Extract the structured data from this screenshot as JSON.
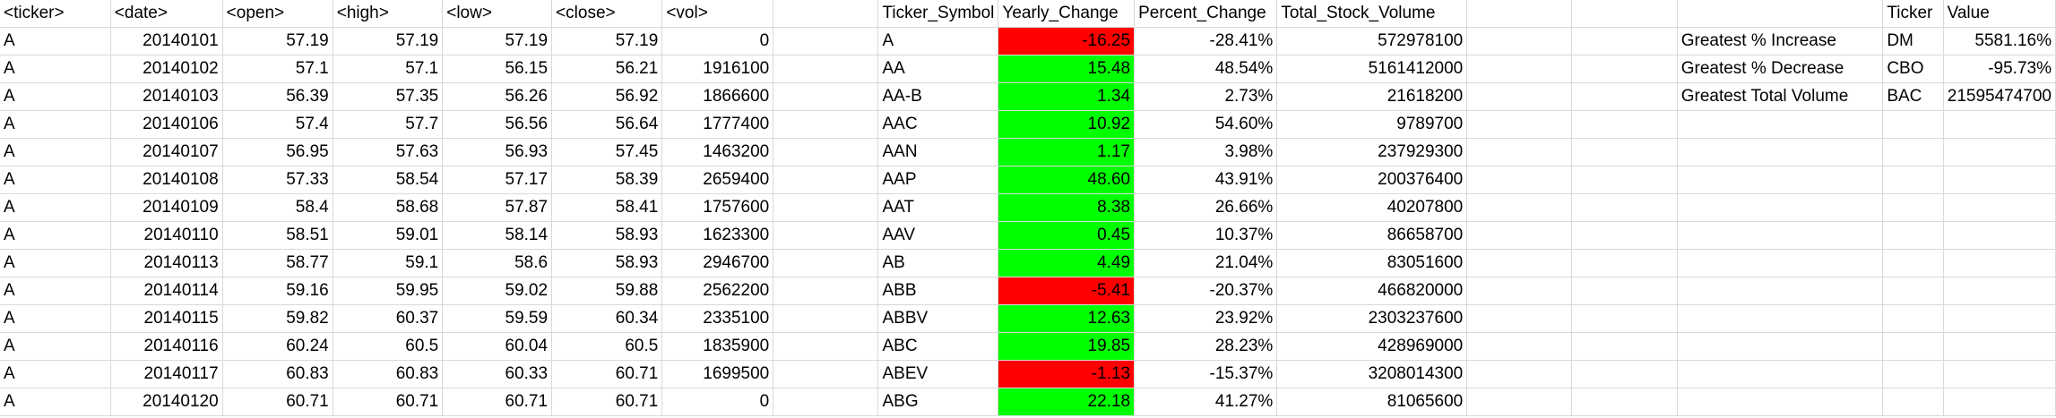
{
  "colors": {
    "positive": "#00ff00",
    "negative": "#ff0000",
    "gridline": "#d9d9d9"
  },
  "raw_headers": [
    "<ticker>",
    "<date>",
    "<open>",
    "<high>",
    "<low>",
    "<close>",
    "<vol>"
  ],
  "summary_headers": [
    "Ticker_Symbol",
    "Yearly_Change",
    "Percent_Change",
    "Total_Stock_Volume"
  ],
  "greatest_headers": [
    "Ticker",
    "Value"
  ],
  "rows": [
    {
      "ticker": "A",
      "date": "20140101",
      "open": "57.19",
      "high": "57.19",
      "low": "57.19",
      "close": "57.19",
      "vol": "0",
      "sym": "A",
      "yearly": "-16.25",
      "pct": "-28.41%",
      "total": "572978100"
    },
    {
      "ticker": "A",
      "date": "20140102",
      "open": "57.1",
      "high": "57.1",
      "low": "56.15",
      "close": "56.21",
      "vol": "1916100",
      "sym": "AA",
      "yearly": "15.48",
      "pct": "48.54%",
      "total": "5161412000"
    },
    {
      "ticker": "A",
      "date": "20140103",
      "open": "56.39",
      "high": "57.35",
      "low": "56.26",
      "close": "56.92",
      "vol": "1866600",
      "sym": "AA-B",
      "yearly": "1.34",
      "pct": "2.73%",
      "total": "21618200"
    },
    {
      "ticker": "A",
      "date": "20140106",
      "open": "57.4",
      "high": "57.7",
      "low": "56.56",
      "close": "56.64",
      "vol": "1777400",
      "sym": "AAC",
      "yearly": "10.92",
      "pct": "54.60%",
      "total": "9789700"
    },
    {
      "ticker": "A",
      "date": "20140107",
      "open": "56.95",
      "high": "57.63",
      "low": "56.93",
      "close": "57.45",
      "vol": "1463200",
      "sym": "AAN",
      "yearly": "1.17",
      "pct": "3.98%",
      "total": "237929300"
    },
    {
      "ticker": "A",
      "date": "20140108",
      "open": "57.33",
      "high": "58.54",
      "low": "57.17",
      "close": "58.39",
      "vol": "2659400",
      "sym": "AAP",
      "yearly": "48.60",
      "pct": "43.91%",
      "total": "200376400"
    },
    {
      "ticker": "A",
      "date": "20140109",
      "open": "58.4",
      "high": "58.68",
      "low": "57.87",
      "close": "58.41",
      "vol": "1757600",
      "sym": "AAT",
      "yearly": "8.38",
      "pct": "26.66%",
      "total": "40207800"
    },
    {
      "ticker": "A",
      "date": "20140110",
      "open": "58.51",
      "high": "59.01",
      "low": "58.14",
      "close": "58.93",
      "vol": "1623300",
      "sym": "AAV",
      "yearly": "0.45",
      "pct": "10.37%",
      "total": "86658700"
    },
    {
      "ticker": "A",
      "date": "20140113",
      "open": "58.77",
      "high": "59.1",
      "low": "58.6",
      "close": "58.93",
      "vol": "2946700",
      "sym": "AB",
      "yearly": "4.49",
      "pct": "21.04%",
      "total": "83051600"
    },
    {
      "ticker": "A",
      "date": "20140114",
      "open": "59.16",
      "high": "59.95",
      "low": "59.02",
      "close": "59.88",
      "vol": "2562200",
      "sym": "ABB",
      "yearly": "-5.41",
      "pct": "-20.37%",
      "total": "466820000"
    },
    {
      "ticker": "A",
      "date": "20140115",
      "open": "59.82",
      "high": "60.37",
      "low": "59.59",
      "close": "60.34",
      "vol": "2335100",
      "sym": "ABBV",
      "yearly": "12.63",
      "pct": "23.92%",
      "total": "2303237600"
    },
    {
      "ticker": "A",
      "date": "20140116",
      "open": "60.24",
      "high": "60.5",
      "low": "60.04",
      "close": "60.5",
      "vol": "1835900",
      "sym": "ABC",
      "yearly": "19.85",
      "pct": "28.23%",
      "total": "428969000"
    },
    {
      "ticker": "A",
      "date": "20140117",
      "open": "60.83",
      "high": "60.83",
      "low": "60.33",
      "close": "60.71",
      "vol": "1699500",
      "sym": "ABEV",
      "yearly": "-1.13",
      "pct": "-15.37%",
      "total": "3208014300"
    },
    {
      "ticker": "A",
      "date": "20140120",
      "open": "60.71",
      "high": "60.71",
      "low": "60.71",
      "close": "60.71",
      "vol": "0",
      "sym": "ABG",
      "yearly": "22.18",
      "pct": "41.27%",
      "total": "81065600"
    }
  ],
  "greatest": [
    {
      "label": "Greatest % Increase",
      "ticker": "DM",
      "value": "5581.16%"
    },
    {
      "label": "Greatest % Decrease",
      "ticker": "CBO",
      "value": "-95.73%"
    },
    {
      "label": "Greatest Total Volume",
      "ticker": "BAC",
      "value": "21595474700"
    }
  ]
}
